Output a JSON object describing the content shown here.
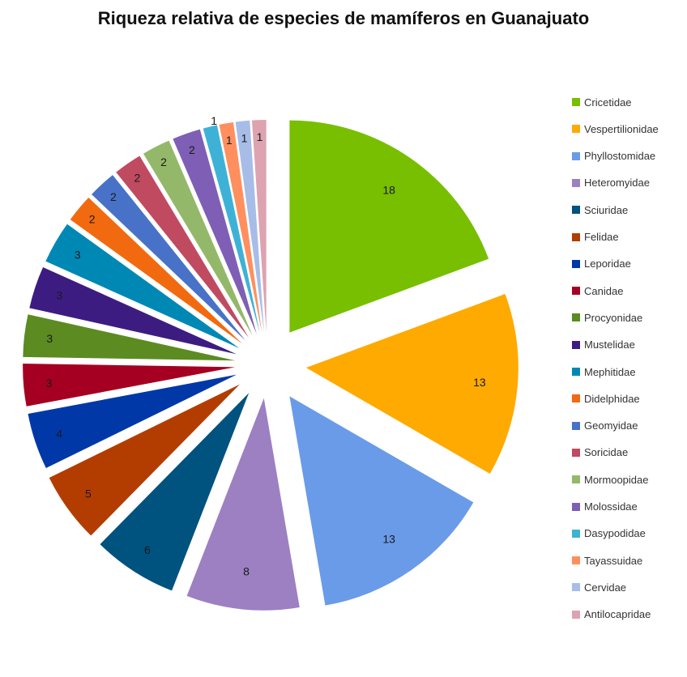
{
  "chart_data": {
    "type": "pie",
    "title": "Riqueza relativa de especies de mamíferos en Guanajuato",
    "legend_position": "right",
    "exploded": true,
    "slices": [
      {
        "name": "Cricetidae",
        "value": 18,
        "color": "#77BF00"
      },
      {
        "name": "Vespertilionidae",
        "value": 13,
        "color": "#FFAA00"
      },
      {
        "name": "Phyllostomidae",
        "value": 13,
        "color": "#6A9BE8"
      },
      {
        "name": "Heteromyidae",
        "value": 8,
        "color": "#9C80C2"
      },
      {
        "name": "Sciuridae",
        "value": 6,
        "color": "#00527F"
      },
      {
        "name": "Felidae",
        "value": 5,
        "color": "#B33D00"
      },
      {
        "name": "Leporidae",
        "value": 4,
        "color": "#0038A8"
      },
      {
        "name": "Canidae",
        "value": 3,
        "color": "#A50021"
      },
      {
        "name": "Procyonidae",
        "value": 3,
        "color": "#5C8B22"
      },
      {
        "name": "Mustelidae",
        "value": 3,
        "color": "#3D1C82"
      },
      {
        "name": "Mephitidae",
        "value": 3,
        "color": "#0088B5"
      },
      {
        "name": "Didelphidae",
        "value": 2,
        "color": "#F26A10"
      },
      {
        "name": "Geomyidae",
        "value": 2,
        "color": "#4872C8"
      },
      {
        "name": "Soricidae",
        "value": 2,
        "color": "#C04A60"
      },
      {
        "name": "Mormoopidae",
        "value": 2,
        "color": "#93B86A"
      },
      {
        "name": "Molossidae",
        "value": 2,
        "color": "#7E5FB5"
      },
      {
        "name": "Dasypodidae",
        "value": 1,
        "color": "#3EB2D6"
      },
      {
        "name": "Tayassuidae",
        "value": 1,
        "color": "#FF8F5E"
      },
      {
        "name": "Cervidae",
        "value": 1,
        "color": "#A7BDE8"
      },
      {
        "name": "Antilocapridae",
        "value": 1,
        "color": "#DDA3B0"
      }
    ]
  }
}
